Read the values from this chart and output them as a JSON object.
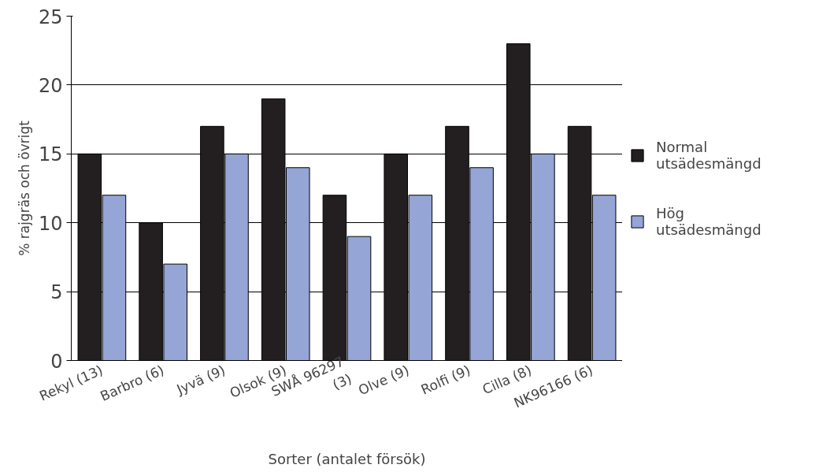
{
  "chart_data": {
    "type": "bar",
    "xlabel": "Sorter (antalet försök)",
    "ylabel": "% rajgräs och övrigt",
    "categories": [
      "Rekyl (13)",
      "Barbro (6)",
      "Jyvä (9)",
      "Olsok (9)",
      "SWÅ 96297\n(3)",
      "Olve (9)",
      "Rolfi (9)",
      "Cilla (8)",
      "NK96166 (6)"
    ],
    "series": [
      {
        "name": "Normal utsädesmängd",
        "color": "#231f20",
        "values": [
          15,
          10,
          17,
          19,
          12,
          15,
          17,
          23,
          17
        ]
      },
      {
        "name": "Hög utsädesmängd",
        "color": "#95a5d6",
        "values": [
          12,
          7,
          15,
          14,
          9,
          12,
          14,
          15,
          12
        ]
      }
    ],
    "ylim": [
      0,
      25
    ],
    "yticks": [
      0,
      5,
      10,
      15,
      20,
      25
    ],
    "grid": "y",
    "legend": "right"
  }
}
